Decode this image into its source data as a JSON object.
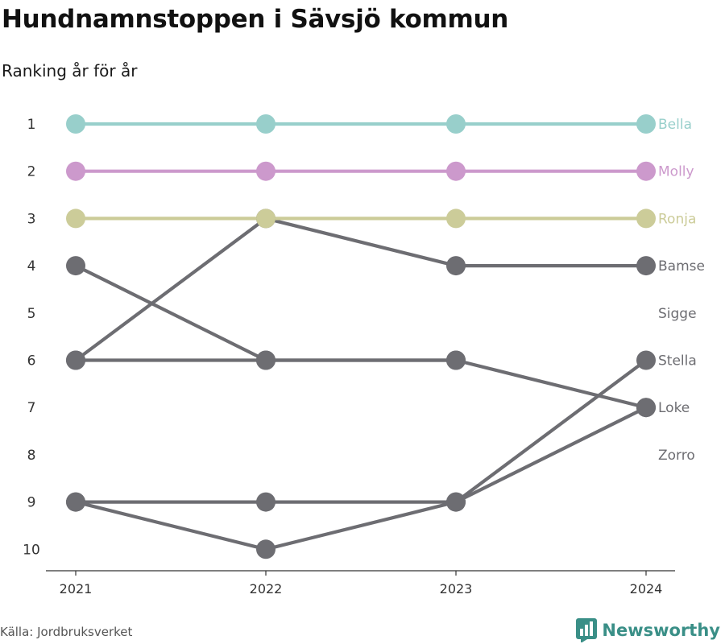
{
  "title": "Hundnamnstoppen i Sävsjö kommun",
  "subtitle": "Ranking år för år",
  "source": "Källa: Jordbruksverket",
  "brand": {
    "name": "Newsworthy",
    "icon": "bar-chart-logo-icon",
    "color": "#3a8f87"
  },
  "chart_data": {
    "type": "line",
    "subtype": "bump",
    "x": [
      "2021",
      "2022",
      "2023",
      "2024"
    ],
    "y_ticks": [
      1,
      2,
      3,
      4,
      5,
      6,
      7,
      8,
      9,
      10
    ],
    "ylim": [
      1,
      10
    ],
    "y_reversed": true,
    "grid": false,
    "legend": "end-labels",
    "series": [
      {
        "name": "Bella",
        "values": [
          1,
          1,
          1,
          1
        ],
        "color": "#98cfcb",
        "highlight": true
      },
      {
        "name": "Molly",
        "values": [
          2,
          2,
          2,
          2
        ],
        "color": "#cc99cc",
        "highlight": true
      },
      {
        "name": "Ronja",
        "values": [
          3,
          3,
          3,
          3
        ],
        "color": "#cccc99",
        "highlight": true
      },
      {
        "name": "Bamse",
        "values": [
          6,
          3,
          4,
          4
        ],
        "color": "#6d6d72"
      },
      {
        "name": "Sigge",
        "values": [
          4,
          6,
          6,
          null
        ],
        "color": "#6d6d72"
      },
      {
        "name": "Stella",
        "values": [
          9,
          9,
          9,
          6
        ],
        "color": "#6d6d72"
      },
      {
        "name": "Loke",
        "values": [
          9,
          10,
          9,
          7
        ],
        "color": "#6d6d72"
      },
      {
        "name": "Zorro",
        "values": [
          6,
          6,
          6,
          7
        ],
        "color": "#6d6d72"
      }
    ],
    "end_labels": [
      {
        "text": "Bella",
        "rank": 1,
        "color": "#98cfcb"
      },
      {
        "text": "Molly",
        "rank": 2,
        "color": "#cc99cc"
      },
      {
        "text": "Ronja",
        "rank": 3,
        "color": "#cccc99"
      },
      {
        "text": "Bamse",
        "rank": 4,
        "color": "#6d6d72"
      },
      {
        "text": "Sigge",
        "rank": 5,
        "color": "#6d6d72"
      },
      {
        "text": "Stella",
        "rank": 6,
        "color": "#6d6d72"
      },
      {
        "text": "Loke",
        "rank": 7,
        "color": "#6d6d72"
      },
      {
        "text": "Zorro",
        "rank": 8,
        "color": "#6d6d72"
      }
    ]
  }
}
